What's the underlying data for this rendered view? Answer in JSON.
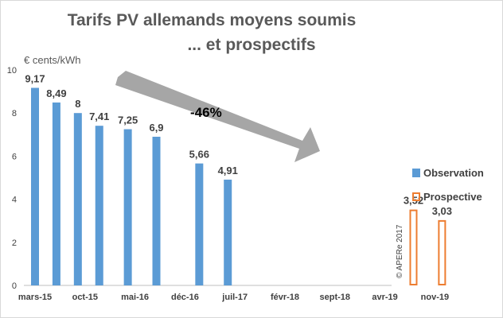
{
  "chart_data": {
    "type": "bar",
    "title_lines": [
      "Tarifs PV allemands moyens soumis",
      "... et prospectifs"
    ],
    "ylabel": "€ cents/kWh",
    "ylim": [
      0,
      10
    ],
    "yticks": [
      0,
      2,
      4,
      6,
      8,
      10
    ],
    "grid": false,
    "legend_position": "right",
    "x_tick_labels": [
      "mars-15",
      "oct-15",
      "mai-16",
      "déc-16",
      "juil-17",
      "févr-18",
      "sept-18",
      "avr-19",
      "nov-19"
    ],
    "series": [
      {
        "name": "Observation",
        "style": "filled",
        "color": "#5b9bd5",
        "points": [
          {
            "date": "2015-03",
            "value": 9.17,
            "label": "9,17"
          },
          {
            "date": "2015-06",
            "value": 8.49,
            "label": "8,49"
          },
          {
            "date": "2015-09",
            "value": 8,
            "label": "8"
          },
          {
            "date": "2015-12",
            "value": 7.41,
            "label": "7,41"
          },
          {
            "date": "2016-04",
            "value": 7.25,
            "label": "7,25"
          },
          {
            "date": "2016-08",
            "value": 6.9,
            "label": "6,9"
          },
          {
            "date": "2017-02",
            "value": 5.66,
            "label": "5,66"
          },
          {
            "date": "2017-06",
            "value": 4.91,
            "label": "4,91"
          }
        ]
      },
      {
        "name": "Prospective",
        "style": "outline",
        "color": "#ed7d31",
        "points": [
          {
            "date": "2019-08",
            "value": 3.52,
            "label": "3,52"
          },
          {
            "date": "2019-12",
            "value": 3.03,
            "label": "3,03"
          }
        ]
      }
    ],
    "annotations": [
      {
        "text": "-46%"
      },
      {
        "text": "© APERe 2017"
      }
    ]
  }
}
